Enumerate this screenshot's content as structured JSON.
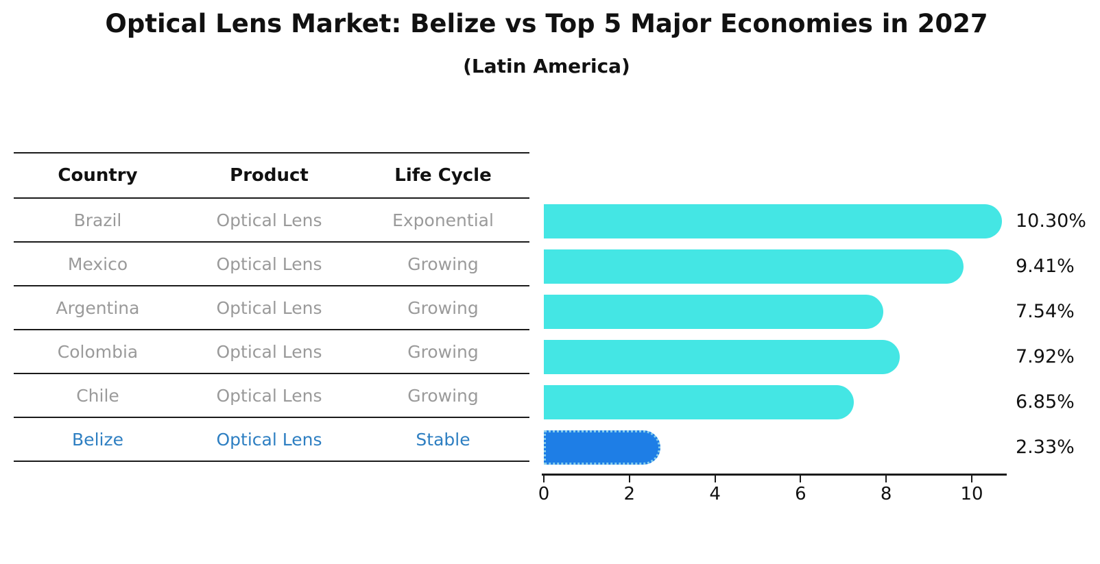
{
  "header": {
    "title": "Optical Lens Market: Belize vs Top 5 Major Economies in 2027",
    "subtitle": "(Latin America)"
  },
  "table": {
    "headers": [
      "Country",
      "Product",
      "Life Cycle"
    ],
    "rows": [
      {
        "country": "Brazil",
        "product": "Optical Lens",
        "life_cycle": "Exponential",
        "highlighted": false
      },
      {
        "country": "Mexico",
        "product": "Optical Lens",
        "life_cycle": "Growing",
        "highlighted": false
      },
      {
        "country": "Argentina",
        "product": "Optical Lens",
        "life_cycle": "Growing",
        "highlighted": false
      },
      {
        "country": "Colombia",
        "product": "Optical Lens",
        "life_cycle": "Growing",
        "highlighted": false
      },
      {
        "country": "Chile",
        "product": "Optical Lens",
        "life_cycle": "Growing",
        "highlighted": false
      },
      {
        "country": "Belize",
        "product": "Optical Lens",
        "life_cycle": "Stable",
        "highlighted": true
      }
    ]
  },
  "chart_data": {
    "type": "bar",
    "orientation": "horizontal",
    "title": "Optical Lens Market: Belize vs Top 5 Major Economies in 2027",
    "subtitle": "(Latin America)",
    "categories": [
      "Brazil",
      "Mexico",
      "Argentina",
      "Colombia",
      "Chile",
      "Belize"
    ],
    "values": [
      10.3,
      9.41,
      7.54,
      7.92,
      6.85,
      2.33
    ],
    "value_labels": [
      "10.30%",
      "9.41%",
      "7.54%",
      "7.92%",
      "6.85%",
      "2.33%"
    ],
    "x_ticks": [
      0,
      2,
      4,
      6,
      8,
      10
    ],
    "xlim": [
      0,
      10.8
    ],
    "grid": false,
    "legend": false,
    "highlight_index": 5
  },
  "colors": {
    "background": "#FFFFFF",
    "bar": "#44E6E4",
    "highlight_bar": "#1E7EE6",
    "highlight_border": "#87CEEB",
    "highlight_text": "#2E7FC2",
    "row_text": "#9A9A9A",
    "header_text": "#111111",
    "value_text": "#111111",
    "line": "#1A1A1A"
  }
}
